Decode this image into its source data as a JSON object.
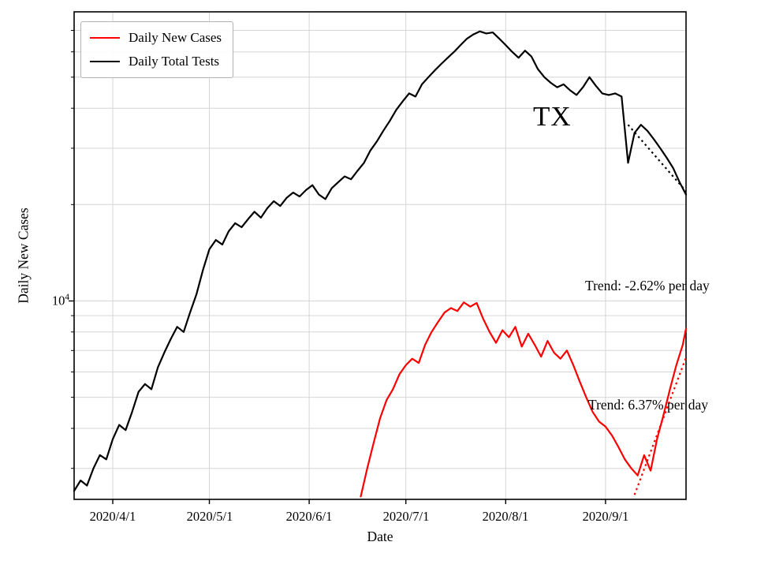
{
  "chart_data": {
    "type": "line",
    "state_label": "TX",
    "xlabel": "Date",
    "ylabel": "Daily New Cases",
    "yscale": "log",
    "ylim": [
      2400,
      80000
    ],
    "x_domain_days": [
      0,
      190
    ],
    "grid_color": "#d6d6d6",
    "y_tick": {
      "base": "10",
      "exp": "4"
    },
    "major_gridlines_y": [
      10000
    ],
    "minor_gridlines_y": [
      3000,
      4000,
      5000,
      6000,
      7000,
      8000,
      9000,
      20000,
      30000,
      40000,
      50000,
      60000,
      70000
    ],
    "x_ticks": [
      {
        "day": 12,
        "label": "2020/4/1"
      },
      {
        "day": 42,
        "label": "2020/5/1"
      },
      {
        "day": 73,
        "label": "2020/6/1"
      },
      {
        "day": 103,
        "label": "2020/7/1"
      },
      {
        "day": 134,
        "label": "2020/8/1"
      },
      {
        "day": 165,
        "label": "2020/9/1"
      }
    ],
    "series": [
      {
        "name": "Daily New Cases",
        "color": "#ff0000",
        "x": [
          89,
          91,
          93,
          95,
          97,
          99,
          101,
          103,
          105,
          107,
          109,
          111,
          113,
          115,
          117,
          119,
          121,
          123,
          125,
          127,
          129,
          131,
          133,
          135,
          137,
          139,
          141,
          143,
          145,
          147,
          149,
          151,
          153,
          155,
          157,
          159,
          161,
          163,
          165,
          167,
          169,
          171,
          173,
          175,
          177,
          179,
          181,
          183,
          185,
          187,
          189,
          190
        ],
        "values": [
          2450,
          3000,
          3600,
          4300,
          4900,
          5300,
          5900,
          6300,
          6600,
          6400,
          7300,
          8000,
          8600,
          9200,
          9500,
          9300,
          9900,
          9600,
          9850,
          8800,
          8000,
          7400,
          8100,
          7700,
          8300,
          7200,
          7900,
          7300,
          6700,
          7500,
          6900,
          6600,
          7000,
          6300,
          5600,
          5000,
          4500,
          4200,
          4050,
          3800,
          3500,
          3200,
          3000,
          2850,
          3300,
          2950,
          3700,
          4400,
          5300,
          6300,
          7300,
          8200
        ]
      },
      {
        "name": "Daily Total Tests",
        "color": "#000000",
        "x": [
          0,
          2,
          4,
          6,
          8,
          10,
          12,
          14,
          16,
          18,
          20,
          22,
          24,
          26,
          28,
          30,
          32,
          34,
          36,
          38,
          40,
          42,
          44,
          46,
          48,
          50,
          52,
          54,
          56,
          58,
          60,
          62,
          64,
          66,
          68,
          70,
          72,
          74,
          76,
          78,
          80,
          82,
          84,
          86,
          88,
          90,
          92,
          94,
          96,
          98,
          100,
          102,
          104,
          106,
          108,
          110,
          112,
          114,
          116,
          118,
          120,
          122,
          124,
          126,
          128,
          130,
          132,
          134,
          136,
          138,
          140,
          142,
          144,
          146,
          148,
          150,
          152,
          154,
          156,
          158,
          160,
          162,
          164,
          166,
          168,
          170,
          172,
          174,
          176,
          178,
          180,
          182,
          184,
          186,
          188,
          190
        ],
        "values": [
          2550,
          2750,
          2650,
          3000,
          3300,
          3200,
          3700,
          4100,
          3950,
          4500,
          5200,
          5500,
          5300,
          6200,
          6900,
          7600,
          8300,
          8000,
          9200,
          10500,
          12500,
          14500,
          15500,
          15000,
          16500,
          17500,
          17000,
          18000,
          19000,
          18200,
          19500,
          20500,
          19800,
          21000,
          21800,
          21200,
          22200,
          23000,
          21500,
          20800,
          22500,
          23500,
          24500,
          24000,
          25500,
          27000,
          29500,
          31500,
          34000,
          36500,
          39500,
          42000,
          44500,
          43500,
          47500,
          50000,
          52500,
          55000,
          57500,
          60000,
          63000,
          66000,
          68000,
          69500,
          68500,
          69000,
          66000,
          63000,
          60000,
          57500,
          60500,
          58000,
          53000,
          50000,
          48000,
          46500,
          47500,
          45500,
          44000,
          46500,
          50000,
          47000,
          44500,
          44000,
          44500,
          43500,
          27000,
          33500,
          35500,
          34000,
          32000,
          30000,
          28000,
          26000,
          23500,
          21500
        ]
      }
    ],
    "trends": [
      {
        "series": "Daily Total Tests",
        "label": "Trend: -2.62% per day",
        "percent_per_day": -2.62,
        "start_day": 172,
        "end_day": 190,
        "start_value": 35500,
        "color": "#000000"
      },
      {
        "series": "Daily New Cases",
        "label": "Trend: 6.37% per day",
        "percent_per_day": 6.37,
        "start_day": 174,
        "end_day": 190,
        "start_value": 2480,
        "color": "#ff0000"
      }
    ],
    "legend": {
      "position": "upper left"
    }
  }
}
